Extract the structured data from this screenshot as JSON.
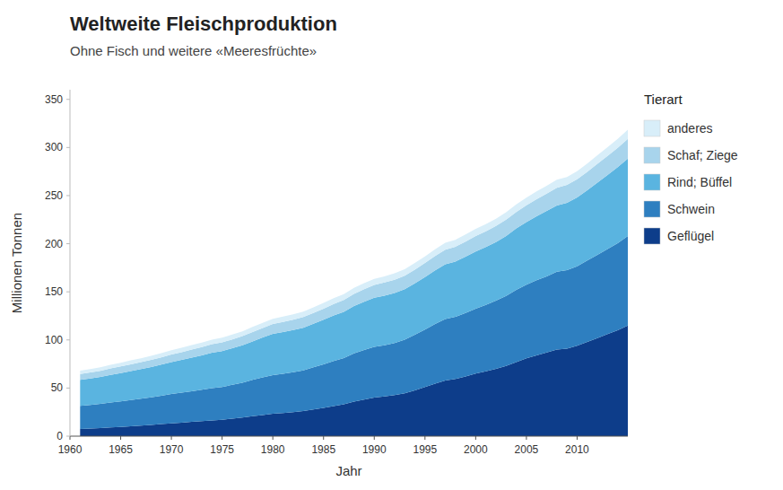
{
  "chart_data": {
    "type": "area",
    "stacked": true,
    "title": "Weltweite Fleischproduktion",
    "subtitle": "Ohne Fisch und weitere «Meeresfrüchte»",
    "xlabel": "Jahr",
    "ylabel": "Millionen Tonnen",
    "legend_title": "Tierart",
    "legend": "right",
    "grid": false,
    "x": [
      1961,
      1962,
      1963,
      1964,
      1965,
      1966,
      1967,
      1968,
      1969,
      1970,
      1971,
      1972,
      1973,
      1974,
      1975,
      1976,
      1977,
      1978,
      1979,
      1980,
      1981,
      1982,
      1983,
      1984,
      1985,
      1986,
      1987,
      1988,
      1989,
      1990,
      1991,
      1992,
      1993,
      1994,
      1995,
      1996,
      1997,
      1998,
      1999,
      2000,
      2001,
      2002,
      2003,
      2004,
      2005,
      2006,
      2007,
      2008,
      2009,
      2010,
      2011,
      2012,
      2013,
      2014,
      2015
    ],
    "series": [
      {
        "name": "Geflügel",
        "color": "#0d3d8a",
        "values": [
          7.5,
          8.0,
          8.5,
          9.1,
          9.6,
          10.3,
          11.0,
          11.7,
          12.5,
          13.3,
          14.1,
          14.9,
          15.7,
          16.4,
          17.1,
          18.2,
          19.4,
          20.7,
          22.0,
          23.3,
          24.1,
          25.0,
          26.2,
          27.8,
          29.4,
          31.2,
          33.2,
          35.8,
          38.0,
          40.0,
          41.2,
          42.6,
          44.5,
          47.5,
          51.0,
          54.5,
          57.8,
          59.5,
          62.0,
          65.0,
          67.5,
          70.0,
          73.0,
          77.0,
          81.0,
          84.0,
          87.0,
          90.0,
          91.0,
          94.0,
          98.0,
          102.0,
          106.0,
          110.0,
          115.0
        ]
      },
      {
        "name": "Schwein",
        "color": "#2e7fc0",
        "values": [
          24.0,
          24.5,
          25.0,
          25.8,
          26.5,
          27.2,
          27.9,
          28.7,
          29.5,
          30.5,
          31.2,
          31.8,
          32.5,
          33.5,
          34.0,
          35.2,
          36.2,
          37.8,
          39.0,
          40.2,
          40.8,
          41.4,
          42.2,
          43.8,
          45.3,
          47.0,
          48.0,
          50.2,
          51.5,
          52.8,
          53.3,
          54.2,
          55.8,
          57.8,
          59.8,
          62.0,
          63.8,
          64.5,
          66.0,
          67.5,
          69.0,
          70.8,
          72.8,
          75.0,
          76.5,
          78.0,
          79.0,
          80.8,
          81.5,
          82.5,
          84.5,
          86.5,
          88.5,
          90.5,
          93.0
        ]
      },
      {
        "name": "Rind; Büffel",
        "color": "#5ab4e0",
        "values": [
          27.0,
          27.5,
          28.0,
          28.8,
          29.5,
          30.2,
          30.8,
          31.5,
          32.3,
          33.2,
          34.0,
          35.0,
          35.8,
          36.8,
          37.3,
          38.0,
          38.8,
          40.0,
          41.5,
          42.8,
          43.3,
          43.8,
          44.3,
          45.2,
          46.2,
          47.2,
          48.0,
          49.2,
          50.2,
          51.0,
          51.5,
          52.0,
          52.5,
          53.5,
          54.5,
          55.8,
          57.0,
          57.5,
          58.5,
          59.5,
          60.0,
          61.0,
          62.2,
          63.8,
          65.0,
          66.5,
          68.0,
          69.0,
          70.0,
          71.5,
          73.0,
          75.0,
          77.0,
          79.0,
          80.5
        ]
      },
      {
        "name": "Schaf; Ziege",
        "color": "#a8d4ec",
        "values": [
          6.0,
          6.2,
          6.4,
          6.6,
          6.8,
          7.0,
          7.2,
          7.4,
          7.6,
          7.8,
          8.0,
          8.3,
          8.6,
          8.8,
          9.0,
          9.2,
          9.5,
          9.8,
          10.0,
          10.2,
          10.5,
          10.7,
          11.0,
          11.3,
          11.6,
          12.0,
          12.3,
          12.7,
          13.0,
          13.3,
          13.6,
          13.8,
          14.0,
          14.3,
          14.6,
          14.9,
          15.2,
          15.4,
          15.7,
          16.0,
          16.3,
          16.6,
          16.9,
          17.2,
          17.5,
          17.8,
          18.1,
          18.4,
          18.6,
          18.9,
          19.2,
          19.5,
          19.8,
          20.1,
          20.5
        ]
      },
      {
        "name": "anderes",
        "color": "#d8eef9",
        "values": [
          3.5,
          3.6,
          3.7,
          3.8,
          3.9,
          4.0,
          4.1,
          4.2,
          4.3,
          4.4,
          4.5,
          4.6,
          4.7,
          4.8,
          4.9,
          5.0,
          5.1,
          5.2,
          5.3,
          5.4,
          5.5,
          5.6,
          5.7,
          5.8,
          5.9,
          6.0,
          6.1,
          6.2,
          6.3,
          6.4,
          6.5,
          6.6,
          6.7,
          6.8,
          6.9,
          7.0,
          7.1,
          7.2,
          7.3,
          7.4,
          7.5,
          7.6,
          7.7,
          7.8,
          7.9,
          8.0,
          8.1,
          8.2,
          8.3,
          8.5,
          8.7,
          8.9,
          9.1,
          9.3,
          9.5
        ]
      }
    ],
    "xlim": [
      1960,
      2015
    ],
    "xticks": [
      1960,
      1965,
      1970,
      1975,
      1980,
      1985,
      1990,
      1995,
      2000,
      2005,
      2010
    ],
    "ylim": [
      0,
      360
    ],
    "yticks": [
      0,
      50,
      100,
      150,
      200,
      250,
      300,
      350
    ]
  }
}
